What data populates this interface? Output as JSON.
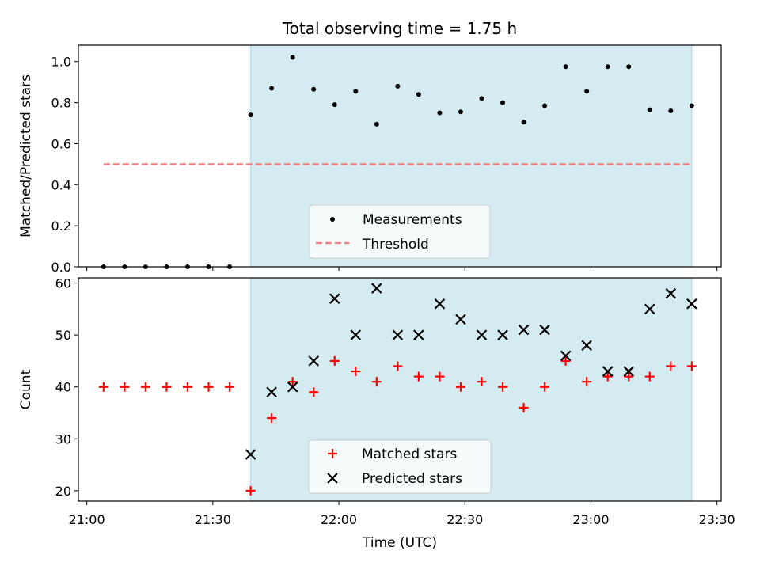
{
  "chart_data": {
    "title": "Total observing time = 1.75 h",
    "xlabel": "Time (UTC)",
    "x_ticks": [
      "21:00",
      "21:30",
      "22:00",
      "22:30",
      "23:00",
      "23:30"
    ],
    "x_range": [
      "20:58",
      "23:31"
    ],
    "shaded_span": {
      "start": "21:39",
      "end": "23:24",
      "color": "#d3ebf1"
    },
    "panels": [
      {
        "type": "scatter",
        "ylabel": "Matched/Predicted stars",
        "ylim": [
          0,
          1.08
        ],
        "y_ticks": [
          "0.0",
          "0.2",
          "0.4",
          "0.6",
          "0.8",
          "1.0"
        ],
        "legend_position": "lower-center",
        "series": [
          {
            "name": "Measurements",
            "marker": "dot",
            "color": "#000000",
            "x": [
              "21:04",
              "21:09",
              "21:14",
              "21:19",
              "21:24",
              "21:29",
              "21:34",
              "21:39",
              "21:44",
              "21:49",
              "21:54",
              "21:59",
              "22:04",
              "22:09",
              "22:14",
              "22:19",
              "22:24",
              "22:29",
              "22:34",
              "22:39",
              "22:44",
              "22:49",
              "22:54",
              "22:59",
              "23:04",
              "23:09",
              "23:14",
              "23:19",
              "23:24"
            ],
            "y": [
              0,
              0,
              0,
              0,
              0,
              0,
              0,
              0.74,
              0.87,
              1.02,
              0.865,
              0.79,
              0.855,
              0.695,
              0.88,
              0.84,
              0.75,
              0.755,
              0.82,
              0.8,
              0.705,
              0.785,
              0.975,
              0.855,
              0.975,
              0.975,
              0.765,
              0.76,
              0.785
            ]
          },
          {
            "name": "Threshold",
            "marker": "dashed-line",
            "color": "#f08080",
            "x": [
              "21:04",
              "23:24"
            ],
            "y": [
              0.5,
              0.5
            ]
          }
        ]
      },
      {
        "type": "scatter",
        "ylabel": "Count",
        "ylim": [
          18,
          61
        ],
        "y_ticks": [
          "20",
          "30",
          "40",
          "50",
          "60"
        ],
        "legend_position": "lower-center",
        "series": [
          {
            "name": "Matched stars",
            "marker": "plus",
            "color": "#ff0000",
            "x": [
              "21:04",
              "21:09",
              "21:14",
              "21:19",
              "21:24",
              "21:29",
              "21:34",
              "21:39",
              "21:44",
              "21:49",
              "21:54",
              "21:59",
              "22:04",
              "22:09",
              "22:14",
              "22:19",
              "22:24",
              "22:29",
              "22:34",
              "22:39",
              "22:44",
              "22:49",
              "22:54",
              "22:59",
              "23:04",
              "23:09",
              "23:14",
              "23:19",
              "23:24"
            ],
            "y": [
              40,
              40,
              40,
              40,
              40,
              40,
              40,
              20,
              34,
              41,
              39,
              45,
              43,
              41,
              44,
              42,
              42,
              40,
              41,
              40,
              36,
              40,
              45,
              41,
              42,
              42,
              42,
              44,
              44
            ]
          },
          {
            "name": "Predicted stars",
            "marker": "x",
            "color": "#000000",
            "x": [
              "21:39",
              "21:44",
              "21:49",
              "21:54",
              "21:59",
              "22:04",
              "22:09",
              "22:14",
              "22:19",
              "22:24",
              "22:29",
              "22:34",
              "22:39",
              "22:44",
              "22:49",
              "22:54",
              "22:59",
              "23:04",
              "23:09",
              "23:14",
              "23:19",
              "23:24"
            ],
            "y": [
              27,
              39,
              40,
              45,
              57,
              50,
              59,
              50,
              50,
              56,
              53,
              50,
              50,
              51,
              51,
              46,
              48,
              43,
              43,
              55,
              58,
              56
            ]
          }
        ]
      }
    ]
  }
}
